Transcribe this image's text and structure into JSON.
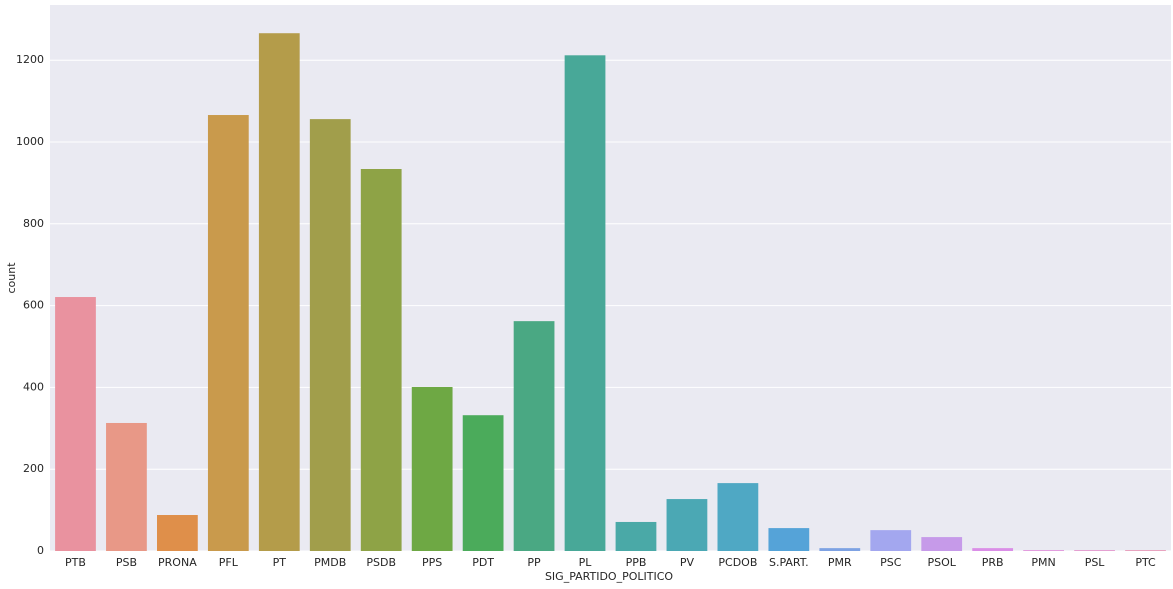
{
  "chart_data": {
    "type": "bar",
    "x_label": "SIG_PARTIDO_POLITICO",
    "y_label": "count",
    "categories": [
      "PTB",
      "PSB",
      "PRONA",
      "PFL",
      "PT",
      "PMDB",
      "PSDB",
      "PPS",
      "PDT",
      "PP",
      "PL",
      "PPB",
      "PV",
      "PCDOB",
      "S.PART.",
      "PMR",
      "PSC",
      "PSOL",
      "PRB",
      "PMN",
      "PSL",
      "PTC"
    ],
    "values": [
      621,
      313,
      88,
      1066,
      1266,
      1056,
      934,
      401,
      332,
      562,
      1212,
      71,
      127,
      166,
      56,
      7,
      51,
      34,
      7,
      2,
      2,
      2
    ],
    "colors": [
      "#e9929f",
      "#e89887",
      "#df8f4a",
      "#c99a4c",
      "#b49c4a",
      "#a19e4b",
      "#8ea346",
      "#6ea844",
      "#4bab5b",
      "#4aa883",
      "#48a898",
      "#4aa9a7",
      "#4ba8b4",
      "#4fa8c4",
      "#55a3d8",
      "#7ea2e3",
      "#a3a7ef",
      "#c69ae9",
      "#da8ee7",
      "#e08cda",
      "#e38fca",
      "#e893b4"
    ],
    "ylim": [
      0,
      1335
    ],
    "yticks": [
      0,
      200,
      400,
      600,
      800,
      1000,
      1200
    ],
    "grid": true
  }
}
